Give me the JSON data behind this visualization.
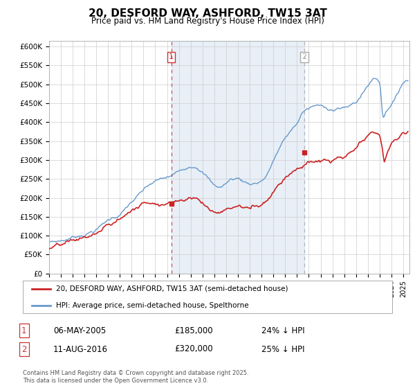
{
  "title": "20, DESFORD WAY, ASHFORD, TW15 3AT",
  "subtitle": "Price paid vs. HM Land Registry's House Price Index (HPI)",
  "ylabel_ticks": [
    "£0",
    "£50K",
    "£100K",
    "£150K",
    "£200K",
    "£250K",
    "£300K",
    "£350K",
    "£400K",
    "£450K",
    "£500K",
    "£550K",
    "£600K"
  ],
  "ytick_values": [
    0,
    50000,
    100000,
    150000,
    200000,
    250000,
    300000,
    350000,
    400000,
    450000,
    500000,
    550000,
    600000
  ],
  "ylim": [
    0,
    615000
  ],
  "xlim_start": 1995.0,
  "xlim_end": 2025.5,
  "hpi_color": "#6699cc",
  "hpi_fill_color": "#ddeeff",
  "price_color": "#cc2222",
  "vline1_color": "#cc3333",
  "vline2_color": "#aaaaaa",
  "marker1_x": 2005.35,
  "marker1_y": 185000,
  "marker2_x": 2016.61,
  "marker2_y": 320000,
  "legend_entries": [
    "20, DESFORD WAY, ASHFORD, TW15 3AT (semi-detached house)",
    "HPI: Average price, semi-detached house, Spelthorne"
  ],
  "table_row1": [
    "1",
    "06-MAY-2005",
    "£185,000",
    "24% ↓ HPI"
  ],
  "table_row2": [
    "2",
    "11-AUG-2016",
    "£320,000",
    "25% ↓ HPI"
  ],
  "footnote": "Contains HM Land Registry data © Crown copyright and database right 2025.\nThis data is licensed under the Open Government Licence v3.0.",
  "background_color": "#ffffff",
  "grid_color": "#cccccc"
}
